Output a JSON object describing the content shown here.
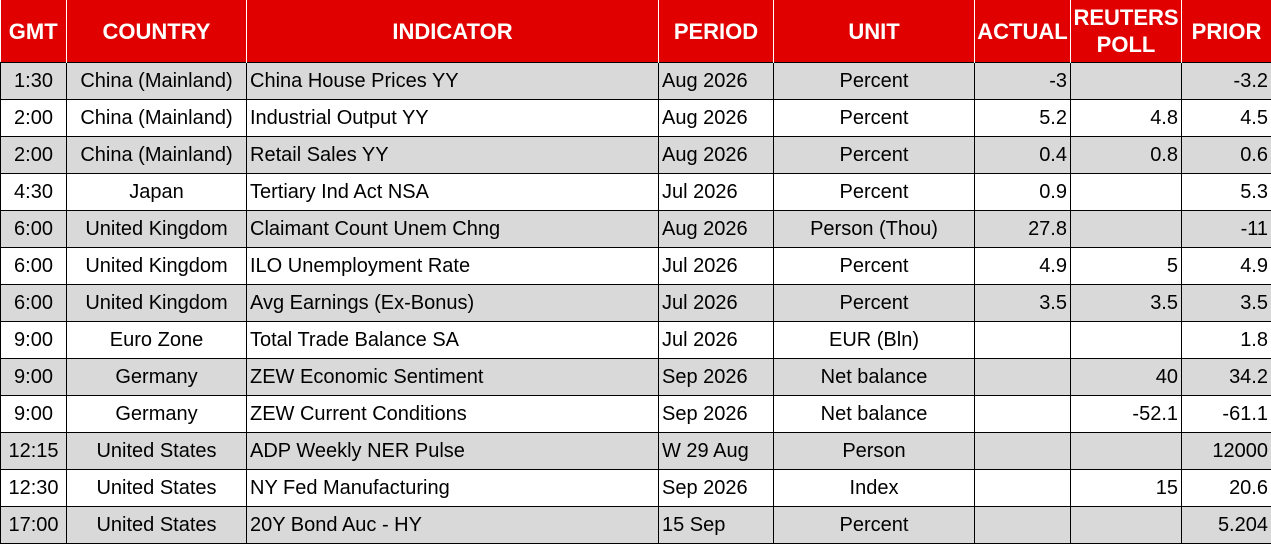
{
  "headers": {
    "gmt": "GMT",
    "country": "COUNTRY",
    "indicator": "INDICATOR",
    "period": "PERIOD",
    "unit": "UNIT",
    "actual": "ACTUAL",
    "poll": "REUTERS POLL",
    "prior": "PRIOR"
  },
  "colors": {
    "header_bg": "#e00000",
    "header_text": "#ffffff",
    "stripe": "#d9d9d9"
  },
  "rows": [
    {
      "gmt": "1:30",
      "country": "China (Mainland)",
      "indicator": "China House Prices YY",
      "period": "Aug 2026",
      "unit": "Percent",
      "actual": "-3",
      "poll": "",
      "prior": "-3.2"
    },
    {
      "gmt": "2:00",
      "country": "China (Mainland)",
      "indicator": "Industrial Output YY",
      "period": "Aug 2026",
      "unit": "Percent",
      "actual": "5.2",
      "poll": "4.8",
      "prior": "4.5"
    },
    {
      "gmt": "2:00",
      "country": "China (Mainland)",
      "indicator": "Retail Sales YY",
      "period": "Aug 2026",
      "unit": "Percent",
      "actual": "0.4",
      "poll": "0.8",
      "prior": "0.6"
    },
    {
      "gmt": "4:30",
      "country": "Japan",
      "indicator": "Tertiary Ind Act NSA",
      "period": "Jul 2026",
      "unit": "Percent",
      "actual": "0.9",
      "poll": "",
      "prior": "5.3"
    },
    {
      "gmt": "6:00",
      "country": "United Kingdom",
      "indicator": "Claimant Count Unem Chng",
      "period": "Aug 2026",
      "unit": "Person (Thou)",
      "actual": "27.8",
      "poll": "",
      "prior": "-11"
    },
    {
      "gmt": "6:00",
      "country": "United Kingdom",
      "indicator": "ILO Unemployment Rate",
      "period": "Jul 2026",
      "unit": "Percent",
      "actual": "4.9",
      "poll": "5",
      "prior": "4.9"
    },
    {
      "gmt": "6:00",
      "country": "United Kingdom",
      "indicator": "Avg Earnings (Ex-Bonus)",
      "period": "Jul 2026",
      "unit": "Percent",
      "actual": "3.5",
      "poll": "3.5",
      "prior": "3.5"
    },
    {
      "gmt": "9:00",
      "country": "Euro Zone",
      "indicator": "Total Trade Balance SA",
      "period": "Jul 2026",
      "unit": "EUR (Bln)",
      "actual": "",
      "poll": "",
      "prior": "1.8"
    },
    {
      "gmt": "9:00",
      "country": "Germany",
      "indicator": "ZEW Economic Sentiment",
      "period": "Sep 2026",
      "unit": "Net balance",
      "actual": "",
      "poll": "40",
      "prior": "34.2"
    },
    {
      "gmt": "9:00",
      "country": "Germany",
      "indicator": "ZEW Current Conditions",
      "period": "Sep 2026",
      "unit": "Net balance",
      "actual": "",
      "poll": "-52.1",
      "prior": "-61.1"
    },
    {
      "gmt": "12:15",
      "country": "United States",
      "indicator": "ADP Weekly NER Pulse",
      "period": "W 29 Aug",
      "unit": "Person",
      "actual": "",
      "poll": "",
      "prior": "12000"
    },
    {
      "gmt": "12:30",
      "country": "United States",
      "indicator": "NY Fed Manufacturing",
      "period": "Sep 2026",
      "unit": "Index",
      "actual": "",
      "poll": "15",
      "prior": "20.6"
    },
    {
      "gmt": "17:00",
      "country": "United States",
      "indicator": "20Y Bond Auc - HY",
      "period": "15 Sep",
      "unit": "Percent",
      "actual": "",
      "poll": "",
      "prior": "5.204"
    }
  ]
}
